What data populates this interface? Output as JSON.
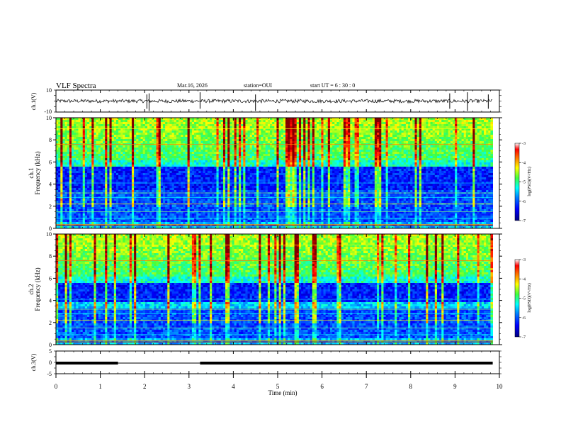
{
  "header": {
    "title": "VLF Spectra",
    "date": "Mar.16, 2026",
    "station": "station=OUI",
    "start": "start  UT =   6  : 30 : 0"
  },
  "colors": {
    "colormap": [
      "#00007f",
      "#0000ff",
      "#0080ff",
      "#00ffff",
      "#80ff80",
      "#ffff00",
      "#ff8000",
      "#ff0000",
      "#7f0000"
    ],
    "frame": "#000000"
  },
  "chart_data": [
    {
      "type": "line",
      "name": "ch1-waveform",
      "ylabel": "ch.1(V)",
      "ylim": [
        -10,
        10
      ],
      "yticks": [
        "10",
        "-10"
      ],
      "baseline": 0,
      "noise_amplitude": 2,
      "spike_times_min": [
        2.05,
        2.1,
        3.25,
        4.5,
        8.88,
        9.28,
        9.75
      ]
    },
    {
      "type": "heatmap",
      "name": "ch1-spectrogram",
      "ylabel": "ch.1 Frequency (kHz)",
      "ylabel_ch": "ch.1",
      "ylabel_freq": "Frequency (kHz)",
      "ylim": [
        0,
        10
      ],
      "yticks": [
        "0",
        "2",
        "4",
        "6",
        "8",
        "10"
      ],
      "colorbar": {
        "label": "log(PSD)(V²/Hz)",
        "range": [
          -7,
          -3
        ],
        "ticks": [
          "-3",
          "-4",
          "-5",
          "-6",
          "-7"
        ]
      }
    },
    {
      "type": "heatmap",
      "name": "ch2-spectrogram",
      "ylabel": "ch.2 Frequency (kHz)",
      "ylabel_ch": "ch.2",
      "ylabel_freq": "Frequency (kHz)",
      "ylim": [
        0,
        10
      ],
      "yticks": [
        "0",
        "2",
        "4",
        "6",
        "8",
        "10"
      ],
      "colorbar": {
        "label": "log(PSD)(V²/Hz)",
        "range": [
          -7,
          -3
        ],
        "ticks": [
          "-3",
          "-4",
          "-5",
          "-6",
          "-7"
        ]
      }
    },
    {
      "type": "line",
      "name": "ch3-signal",
      "ylabel": "ch.3(V)",
      "ylim": [
        -5,
        5
      ],
      "yticks": [
        "5",
        "0",
        "-5"
      ],
      "baseline": 0,
      "thick_segments_min": [
        [
          0,
          1.4
        ],
        [
          3.25,
          9.85
        ]
      ],
      "thin_segments_min": [
        [
          1.4,
          3.25
        ]
      ]
    }
  ],
  "xaxis": {
    "label": "Time (min)",
    "range": [
      0,
      10
    ],
    "ticks": [
      "0",
      "1",
      "2",
      "3",
      "4",
      "5",
      "6",
      "7",
      "8",
      "9",
      "10"
    ],
    "data_end": 9.85
  }
}
